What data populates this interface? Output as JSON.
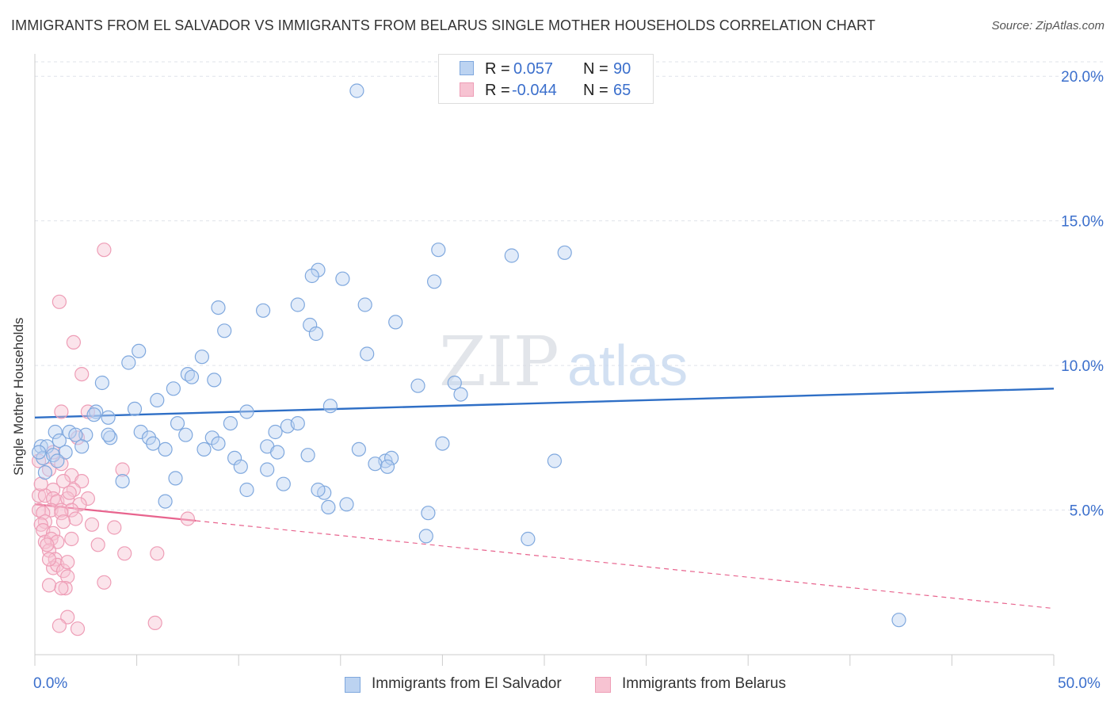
{
  "title": "IMMIGRANTS FROM EL SALVADOR VS IMMIGRANTS FROM BELARUS SINGLE MOTHER HOUSEHOLDS CORRELATION CHART",
  "source": "Source: ZipAtlas.com",
  "watermark": {
    "zip": "ZIP",
    "atlas": "atlas"
  },
  "legend": {
    "rows": [
      {
        "r_label": "R =",
        "r_value": "0.057",
        "n_label": "N =",
        "n_value": "90"
      },
      {
        "r_label": "R =",
        "r_value": "-0.044",
        "n_label": "N =",
        "n_value": "65"
      }
    ]
  },
  "x_axis": {
    "min_label": "0.0%",
    "max_label": "50.0%"
  },
  "colors": {
    "series_a_stroke": "#7fa8de",
    "series_a_fill": "#bcd3f1",
    "series_a_line": "#2f6fc6",
    "series_b_stroke": "#ee9db6",
    "series_b_fill": "#f7c3d2",
    "series_b_line": "#e8648e",
    "tick_text": "#3b6fcc",
    "grid": "#dfe3ea"
  },
  "chart_data": {
    "type": "scatter",
    "title": "IMMIGRANTS FROM EL SALVADOR VS IMMIGRANTS FROM BELARUS SINGLE MOTHER HOUSEHOLDS CORRELATION CHART",
    "xlabel": "",
    "ylabel": "Single Mother Households",
    "xlim": [
      0,
      50
    ],
    "ylim": [
      0,
      20.5
    ],
    "y_ticks": [
      {
        "value": 5,
        "label": "5.0%"
      },
      {
        "value": 10,
        "label": "10.0%"
      },
      {
        "value": 15,
        "label": "15.0%"
      },
      {
        "value": 20,
        "label": "20.0%"
      }
    ],
    "series": [
      {
        "name": "Immigrants from El Salvador",
        "r": 0.057,
        "n": 90,
        "trend": {
          "x": [
            0,
            50
          ],
          "y": [
            8.2,
            9.2
          ],
          "dashed_from": null
        },
        "points": [
          [
            15.8,
            19.5
          ],
          [
            13.9,
            13.3
          ],
          [
            19.8,
            14.0
          ],
          [
            23.4,
            13.8
          ],
          [
            26.0,
            13.9
          ],
          [
            15.1,
            13.0
          ],
          [
            13.6,
            13.1
          ],
          [
            19.6,
            12.9
          ],
          [
            9.0,
            12.0
          ],
          [
            11.2,
            11.9
          ],
          [
            12.9,
            12.1
          ],
          [
            16.2,
            12.1
          ],
          [
            17.7,
            11.5
          ],
          [
            9.3,
            11.2
          ],
          [
            13.5,
            11.4
          ],
          [
            13.8,
            11.1
          ],
          [
            5.1,
            10.5
          ],
          [
            16.3,
            10.4
          ],
          [
            4.6,
            10.1
          ],
          [
            8.2,
            10.3
          ],
          [
            7.5,
            9.7
          ],
          [
            7.7,
            9.6
          ],
          [
            8.8,
            9.5
          ],
          [
            3.3,
            9.4
          ],
          [
            18.8,
            9.3
          ],
          [
            20.6,
            9.4
          ],
          [
            20.9,
            9.0
          ],
          [
            6.8,
            9.2
          ],
          [
            6.0,
            8.8
          ],
          [
            14.5,
            8.6
          ],
          [
            3.0,
            8.4
          ],
          [
            2.9,
            8.3
          ],
          [
            3.6,
            8.2
          ],
          [
            4.9,
            8.5
          ],
          [
            10.4,
            8.4
          ],
          [
            1.7,
            7.7
          ],
          [
            2.5,
            7.6
          ],
          [
            1.0,
            7.7
          ],
          [
            2.0,
            7.6
          ],
          [
            3.7,
            7.5
          ],
          [
            5.2,
            7.7
          ],
          [
            5.6,
            7.5
          ],
          [
            7.0,
            8.0
          ],
          [
            7.4,
            7.6
          ],
          [
            8.7,
            7.5
          ],
          [
            9.6,
            8.0
          ],
          [
            11.8,
            7.7
          ],
          [
            12.4,
            7.9
          ],
          [
            12.9,
            8.0
          ],
          [
            0.3,
            7.2
          ],
          [
            0.6,
            7.2
          ],
          [
            1.2,
            7.4
          ],
          [
            1.5,
            7.0
          ],
          [
            2.3,
            7.2
          ],
          [
            5.8,
            7.3
          ],
          [
            6.4,
            7.1
          ],
          [
            8.3,
            7.1
          ],
          [
            9.0,
            7.3
          ],
          [
            11.4,
            7.2
          ],
          [
            11.9,
            7.0
          ],
          [
            14.2,
            5.6
          ],
          [
            15.9,
            7.1
          ],
          [
            17.2,
            6.7
          ],
          [
            17.5,
            6.8
          ],
          [
            20.0,
            7.3
          ],
          [
            0.4,
            6.8
          ],
          [
            0.9,
            6.9
          ],
          [
            1.1,
            6.7
          ],
          [
            0.5,
            6.3
          ],
          [
            9.8,
            6.8
          ],
          [
            10.1,
            6.5
          ],
          [
            13.4,
            6.9
          ],
          [
            11.4,
            6.4
          ],
          [
            16.7,
            6.6
          ],
          [
            17.3,
            6.5
          ],
          [
            25.5,
            6.7
          ],
          [
            4.3,
            6.0
          ],
          [
            6.9,
            6.1
          ],
          [
            10.4,
            5.7
          ],
          [
            12.2,
            5.9
          ],
          [
            13.9,
            5.7
          ],
          [
            14.4,
            5.1
          ],
          [
            15.3,
            5.2
          ],
          [
            6.4,
            5.3
          ],
          [
            19.3,
            4.9
          ],
          [
            19.2,
            4.1
          ],
          [
            24.2,
            4.0
          ],
          [
            42.4,
            1.2
          ],
          [
            0.2,
            7.0
          ],
          [
            3.6,
            7.6
          ]
        ]
      },
      {
        "name": "Immigrants from Belarus",
        "r": -0.044,
        "n": 65,
        "trend": {
          "x": [
            0,
            50
          ],
          "y": [
            5.2,
            1.6
          ],
          "dashed_from": 7.9
        },
        "points": [
          [
            3.4,
            14.0
          ],
          [
            1.2,
            12.2
          ],
          [
            1.9,
            10.8
          ],
          [
            2.3,
            9.7
          ],
          [
            1.3,
            8.4
          ],
          [
            2.6,
            8.4
          ],
          [
            0.2,
            6.7
          ],
          [
            0.9,
            7.0
          ],
          [
            2.1,
            7.5
          ],
          [
            1.3,
            6.6
          ],
          [
            1.8,
            6.2
          ],
          [
            4.3,
            6.4
          ],
          [
            0.7,
            6.4
          ],
          [
            1.4,
            6.0
          ],
          [
            2.3,
            6.0
          ],
          [
            0.9,
            5.7
          ],
          [
            1.9,
            5.7
          ],
          [
            0.2,
            5.5
          ],
          [
            0.5,
            5.5
          ],
          [
            0.9,
            5.4
          ],
          [
            1.1,
            5.3
          ],
          [
            1.6,
            5.4
          ],
          [
            1.7,
            5.6
          ],
          [
            2.6,
            5.4
          ],
          [
            2.2,
            5.2
          ],
          [
            0.8,
            5.0
          ],
          [
            1.3,
            5.0
          ],
          [
            1.8,
            5.0
          ],
          [
            0.2,
            5.0
          ],
          [
            0.4,
            4.9
          ],
          [
            1.3,
            4.9
          ],
          [
            2.0,
            4.7
          ],
          [
            0.5,
            4.6
          ],
          [
            1.4,
            4.6
          ],
          [
            2.8,
            4.5
          ],
          [
            3.9,
            4.4
          ],
          [
            7.5,
            4.7
          ],
          [
            0.3,
            4.5
          ],
          [
            0.4,
            4.3
          ],
          [
            0.9,
            4.2
          ],
          [
            0.5,
            3.9
          ],
          [
            0.8,
            4.0
          ],
          [
            1.1,
            3.9
          ],
          [
            1.8,
            4.0
          ],
          [
            3.1,
            3.8
          ],
          [
            4.4,
            3.5
          ],
          [
            0.7,
            3.6
          ],
          [
            1.0,
            3.3
          ],
          [
            6.0,
            3.5
          ],
          [
            0.9,
            3.0
          ],
          [
            1.1,
            3.1
          ],
          [
            1.4,
            2.9
          ],
          [
            1.6,
            2.7
          ],
          [
            3.4,
            2.5
          ],
          [
            1.5,
            2.3
          ],
          [
            1.3,
            2.3
          ],
          [
            1.6,
            1.3
          ],
          [
            1.2,
            1.0
          ],
          [
            2.1,
            0.9
          ],
          [
            5.9,
            1.1
          ],
          [
            0.7,
            2.4
          ],
          [
            0.6,
            3.8
          ],
          [
            0.3,
            5.9
          ],
          [
            1.6,
            3.2
          ],
          [
            0.7,
            3.3
          ]
        ]
      }
    ]
  }
}
